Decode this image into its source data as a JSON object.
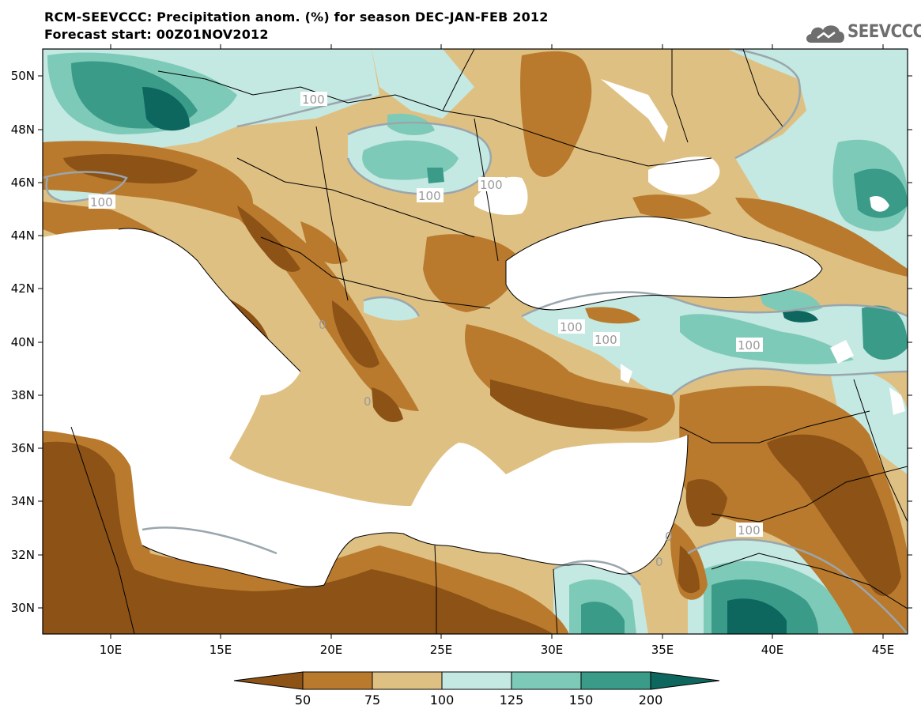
{
  "header": {
    "title": "RCM-SEEVCCC: Precipitation anom. (%) for season DEC-JAN-FEB 2012",
    "subtitle": "Forecast start: 00Z01NOV2012",
    "logo_text": "SEEVCCC"
  },
  "map": {
    "lon_ticks": [
      "10E",
      "15E",
      "20E",
      "25E",
      "30E",
      "35E",
      "40E",
      "45E"
    ],
    "lat_ticks": [
      "50N",
      "48N",
      "46N",
      "44N",
      "42N",
      "40N",
      "38N",
      "36N",
      "34N",
      "32N",
      "30N"
    ],
    "contour_labels": [
      "100",
      "100",
      "100",
      "100",
      "100",
      "100",
      "100",
      "100",
      "0",
      "0",
      "0",
      "0"
    ]
  },
  "legend": {
    "labels": [
      "50",
      "75",
      "100",
      "125",
      "150",
      "200"
    ],
    "colors": [
      "#8c5216",
      "#b97a2e",
      "#dfc083",
      "#c4e8e2",
      "#7ecab8",
      "#3a9b88",
      "#0d675e"
    ]
  },
  "colors": {
    "sea": "#ffffff",
    "dry_strong": "#8c5216",
    "dry": "#b97a2e",
    "dry_light": "#dfc083",
    "wet_light": "#c4e8e2",
    "wet": "#7ecab8",
    "wet_strong": "#3a9b88",
    "wet_extreme": "#0d675e",
    "contour_100": "#9aa6ad"
  }
}
